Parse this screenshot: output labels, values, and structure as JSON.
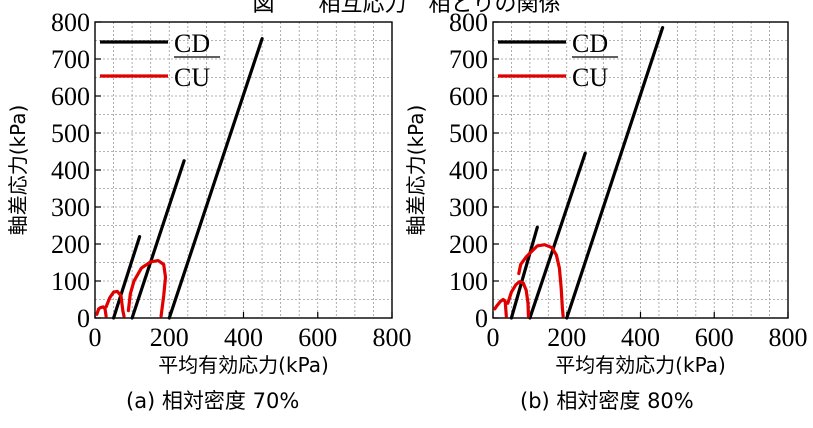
{
  "figure_caption": "図　　相互応力　相とりの関係",
  "chart_data": [
    {
      "type": "line",
      "caption": "(a)  相対密度 70%",
      "xlabel": "平均有効応力(kPa)",
      "ylabel": "軸差応力(kPa)",
      "xlim": [
        0,
        800
      ],
      "ylim": [
        0,
        800
      ],
      "xticks": [
        "0",
        "200",
        "400",
        "600",
        "800"
      ],
      "yticks": [
        "0",
        "100",
        "200",
        "300",
        "400",
        "500",
        "600",
        "700",
        "800"
      ],
      "grid": true,
      "legend_placement": "top-left",
      "series": [
        {
          "name": "CD",
          "color": "#000000",
          "segments": [
            [
              [
                50,
                0
              ],
              [
                120,
                220
              ]
            ],
            [
              [
                100,
                0
              ],
              [
                240,
                425
              ]
            ],
            [
              [
                200,
                0
              ],
              [
                450,
                755
              ]
            ]
          ]
        },
        {
          "name": "CU",
          "color": "#e00000",
          "segments": [
            [
              [
                5,
                10
              ],
              [
                10,
                25
              ],
              [
                15,
                28
              ],
              [
                22,
                30
              ],
              [
                27,
                25
              ],
              [
                30,
                5
              ]
            ],
            [
              [
                30,
                30
              ],
              [
                40,
                55
              ],
              [
                50,
                70
              ],
              [
                60,
                72
              ],
              [
                70,
                60
              ],
              [
                75,
                20
              ],
              [
                78,
                5
              ]
            ],
            [
              [
                90,
                20
              ],
              [
                95,
                65
              ],
              [
                105,
                100
              ],
              [
                125,
                135
              ],
              [
                150,
                152
              ],
              [
                170,
                155
              ],
              [
                185,
                145
              ],
              [
                190,
                110
              ],
              [
                185,
                60
              ],
              [
                180,
                20
              ],
              [
                178,
                5
              ]
            ]
          ]
        }
      ]
    },
    {
      "type": "line",
      "caption": "(b)  相対密度 80%",
      "xlabel": "平均有効応力(kPa)",
      "ylabel": "軸差応力(kPa)",
      "xlim": [
        0,
        800
      ],
      "ylim": [
        0,
        800
      ],
      "xticks": [
        "0",
        "200",
        "400",
        "600",
        "800"
      ],
      "yticks": [
        "0",
        "100",
        "200",
        "300",
        "400",
        "500",
        "600",
        "700",
        "800"
      ],
      "grid": true,
      "legend_placement": "top-left",
      "series": [
        {
          "name": "CD",
          "color": "#000000",
          "segments": [
            [
              [
                50,
                0
              ],
              [
                120,
                245
              ]
            ],
            [
              [
                100,
                0
              ],
              [
                250,
                445
              ]
            ],
            [
              [
                200,
                0
              ],
              [
                460,
                785
              ]
            ]
          ]
        },
        {
          "name": "CU",
          "color": "#e00000",
          "segments": [
            [
              [
                5,
                25
              ],
              [
                12,
                35
              ],
              [
                20,
                45
              ],
              [
                28,
                50
              ],
              [
                33,
                45
              ],
              [
                35,
                20
              ],
              [
                36,
                5
              ]
            ],
            [
              [
                40,
                40
              ],
              [
                50,
                70
              ],
              [
                62,
                90
              ],
              [
                72,
                98
              ],
              [
                82,
                95
              ],
              [
                90,
                75
              ],
              [
                95,
                40
              ],
              [
                96,
                5
              ]
            ],
            [
              [
                70,
                120
              ],
              [
                75,
                145
              ],
              [
                90,
                165
              ],
              [
                105,
                180
              ],
              [
                120,
                195
              ],
              [
                140,
                198
              ],
              [
                160,
                190
              ],
              [
                172,
                170
              ],
              [
                180,
                135
              ],
              [
                185,
                80
              ],
              [
                188,
                30
              ],
              [
                190,
                5
              ]
            ]
          ]
        }
      ]
    }
  ]
}
